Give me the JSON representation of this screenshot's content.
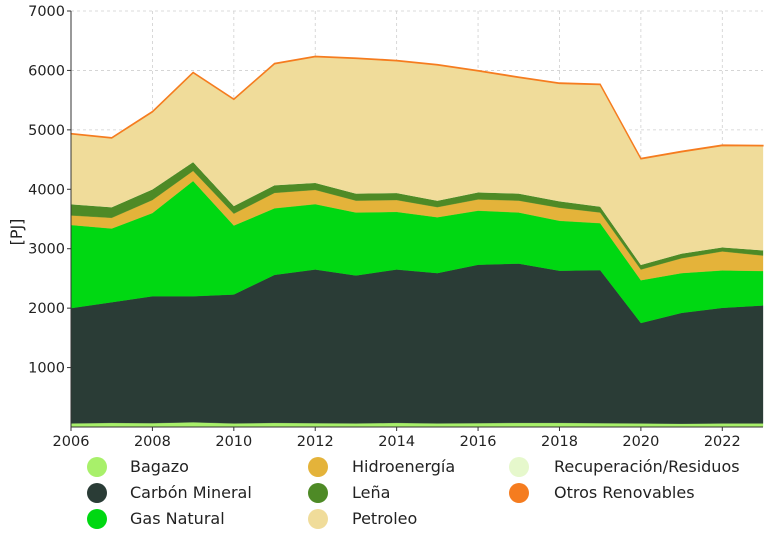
{
  "chart_data": {
    "type": "area",
    "stacked": true,
    "title": "",
    "xlabel": "",
    "ylabel": "[PJ]",
    "xlim": [
      2006,
      2023
    ],
    "ylim": [
      0,
      7000
    ],
    "xticks": [
      2006,
      2008,
      2010,
      2012,
      2014,
      2016,
      2018,
      2020,
      2022
    ],
    "yticks": [
      1000,
      2000,
      3000,
      4000,
      5000,
      6000,
      7000
    ],
    "grid": true,
    "legend_position": "bottom",
    "x": [
      2006,
      2007,
      2008,
      2009,
      2010,
      2011,
      2012,
      2013,
      2014,
      2015,
      2016,
      2017,
      2018,
      2019,
      2020,
      2021,
      2022,
      2023
    ],
    "series": [
      {
        "name": "Bagazo",
        "color": "#a8f06a",
        "values": [
          60,
          70,
          65,
          80,
          60,
          70,
          65,
          60,
          70,
          60,
          65,
          70,
          70,
          65,
          60,
          55,
          60,
          60
        ]
      },
      {
        "name": "Carbón Mineral",
        "color": "#2a3c36",
        "values": [
          1940,
          2030,
          2135,
          2120,
          2170,
          2490,
          2585,
          2490,
          2580,
          2530,
          2665,
          2680,
          2560,
          2575,
          1690,
          1865,
          1945,
          1985
        ]
      },
      {
        "name": "Gas Natural",
        "color": "#00d812",
        "values": [
          1400,
          1240,
          1400,
          1940,
          1160,
          1120,
          1100,
          1060,
          970,
          940,
          910,
          860,
          840,
          790,
          720,
          670,
          630,
          580
        ]
      },
      {
        "name": "Hidroenergía",
        "color": "#e4b33a",
        "values": [
          160,
          180,
          220,
          170,
          200,
          260,
          240,
          200,
          200,
          170,
          190,
          200,
          220,
          180,
          180,
          250,
          320,
          260
        ]
      },
      {
        "name": "Leña",
        "color": "#4e8a26",
        "values": [
          190,
          180,
          180,
          150,
          130,
          130,
          120,
          120,
          120,
          110,
          120,
          120,
          110,
          100,
          80,
          80,
          70,
          90
        ]
      },
      {
        "name": "Recuperación/Residuos",
        "color": "#e6f8cc",
        "values": [
          0,
          0,
          0,
          0,
          0,
          0,
          0,
          0,
          0,
          0,
          0,
          0,
          0,
          0,
          0,
          0,
          0,
          0
        ]
      },
      {
        "name": "Petroleo",
        "color": "#f0dc9a",
        "values": [
          1180,
          1160,
          1300,
          1500,
          1790,
          2040,
          2120,
          2270,
          2220,
          2280,
          2040,
          1950,
          1980,
          2050,
          1780,
          1710,
          1710,
          1755
        ]
      },
      {
        "name": "Otros Renovables",
        "color": "#f57c1f",
        "values": [
          10,
          10,
          10,
          10,
          10,
          10,
          10,
          10,
          10,
          10,
          10,
          10,
          10,
          10,
          10,
          10,
          10,
          10
        ]
      }
    ],
    "legend_order": [
      "Bagazo",
      "Carbón Mineral",
      "Gas Natural",
      "Hidroenergía",
      "Leña",
      "Petroleo",
      "Recuperación/Residuos",
      "Otros Renovables"
    ]
  }
}
